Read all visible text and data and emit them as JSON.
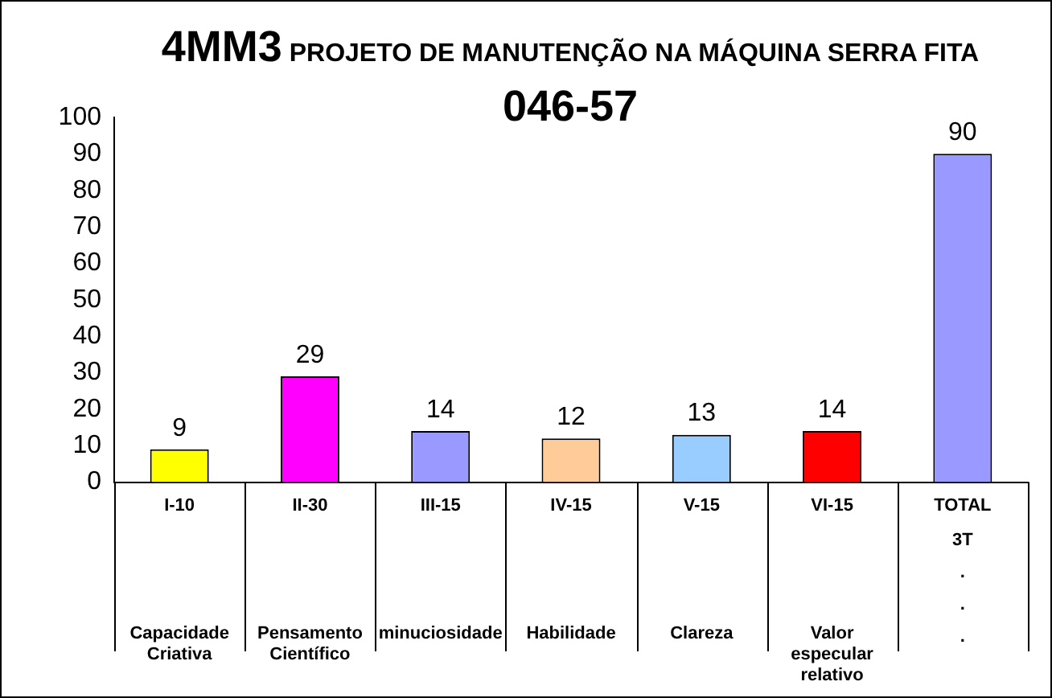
{
  "chart_data": {
    "type": "bar",
    "title": "4MM3 PROJETO DE MANUTENÇÃO NA MÁQUINA SERRA FITA",
    "subtitle": "046-57",
    "categories": [
      "I-10",
      "II-30",
      "III-15",
      "IV-15",
      "V-15",
      "VI-15",
      "TOTAL"
    ],
    "values": [
      9,
      29,
      14,
      12,
      13,
      14,
      90
    ],
    "colors": [
      "#ffff00",
      "#ff00ff",
      "#9999ff",
      "#ffcc99",
      "#99ccff",
      "#ff0000",
      "#9999ff"
    ],
    "ylim": [
      0,
      100
    ],
    "yticks": [
      0,
      10,
      20,
      30,
      40,
      50,
      60,
      70,
      80,
      90,
      100
    ],
    "grid": false,
    "legend": false,
    "data_labels": true,
    "annotations": [
      "Capacidade Criativa",
      "Pensamento Científico",
      "minuciosidade",
      "Habilidade",
      "Clareza",
      "Valor especular relativo",
      "3T\n.\n.\n."
    ]
  }
}
